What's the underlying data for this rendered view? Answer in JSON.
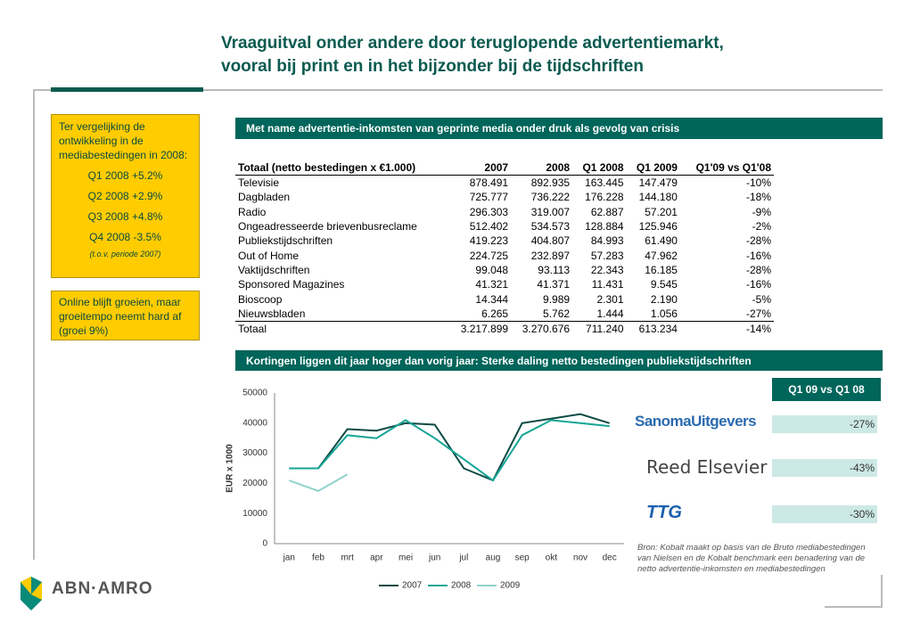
{
  "title": [
    "Vraaguitval onder andere door teruglopende advertentiemarkt,",
    "vooral bij print en in het bijzonder bij de tijdschriften"
  ],
  "sidebar": {
    "intro": "Ter vergelijking de ontwikkeling in de mediabestedingen in 2008:",
    "items": [
      "Q1 2008 +5.2%",
      "Q2 2008 +2.9%",
      "Q3 2008 +4.8%",
      "Q4 2008 -3.5%"
    ],
    "note": "(t.o.v. periode 2007)",
    "online": "Online blijft groeien, maar groeitempo neemt hard af (groei 9%)"
  },
  "table": {
    "banner": "Met name advertentie-inkomsten van geprinte media onder druk als gevolg van crisis",
    "columns": [
      "Totaal (netto bestedingen x €1.000)",
      "2007",
      "2008",
      "Q1 2008",
      "Q1 2009",
      "Q1'09 vs Q1'08"
    ],
    "rows": [
      [
        "Televisie",
        "878.491",
        "892.935",
        "163.445",
        "147.479",
        "-10%"
      ],
      [
        "Dagbladen",
        "725.777",
        "736.222",
        "176.228",
        "144.180",
        "-18%"
      ],
      [
        "Radio",
        "296.303",
        "319.007",
        "62.887",
        "57.201",
        "-9%"
      ],
      [
        "Ongeadresseerde brievenbusreclame",
        "512.402",
        "534.573",
        "128.884",
        "125.946",
        "-2%"
      ],
      [
        "Publiekstijdschriften",
        "419.223",
        "404.807",
        "84.993",
        "61.490",
        "-28%"
      ],
      [
        "Out of Home",
        "224.725",
        "232.897",
        "57.283",
        "47.962",
        "-16%"
      ],
      [
        "Vaktijdschriften",
        "99.048",
        "93.113",
        "22.343",
        "16.185",
        "-28%"
      ],
      [
        "Sponsored Magazines",
        "41.321",
        "41.371",
        "11.431",
        "9.545",
        "-16%"
      ],
      [
        "Bioscoop",
        "14.344",
        "9.989",
        "2.301",
        "2.190",
        "-5%"
      ],
      [
        "Nieuwsbladen",
        "6.265",
        "5.762",
        "1.444",
        "1.056",
        "-27%"
      ],
      [
        "Totaal",
        "3.217.899",
        "3.270.676",
        "711.240",
        "613.234",
        "-14%"
      ]
    ]
  },
  "chart_banner": "Kortingen liggen dit jaar hoger dan vorig jaar: Sterke daling netto bestedingen publiekstijdschriften",
  "chart_data": {
    "type": "line",
    "ylabel": "EUR x 1000",
    "categories": [
      "jan",
      "feb",
      "mrt",
      "apr",
      "mei",
      "jun",
      "jul",
      "aug",
      "sep",
      "okt",
      "nov",
      "dec"
    ],
    "ylim": [
      0,
      50000
    ],
    "yticks": [
      0,
      10000,
      20000,
      30000,
      40000,
      50000
    ],
    "legend": "bottom",
    "series": [
      {
        "name": "2007",
        "color": "#0b4a43",
        "values": [
          25000,
          25000,
          38000,
          37500,
          40000,
          39500,
          25000,
          21000,
          40000,
          41500,
          43000,
          40000
        ]
      },
      {
        "name": "2008",
        "color": "#14a596",
        "values": [
          25000,
          25000,
          36000,
          35000,
          41000,
          35000,
          28000,
          21000,
          36000,
          41000,
          40000,
          39000
        ]
      },
      {
        "name": "2009",
        "color": "#8fd3cc",
        "values": [
          21000,
          17500,
          23000,
          null,
          null,
          null,
          null,
          null,
          null,
          null,
          null,
          null
        ]
      }
    ]
  },
  "comparison": {
    "header": "Q1 09 vs Q1 08",
    "publishers": [
      {
        "name": "SanomaUitgevers",
        "value": "-27%"
      },
      {
        "name": "Reed Elsevier",
        "value": "-43%"
      },
      {
        "name": "TTG",
        "value": "-30%"
      }
    ]
  },
  "source": "Bron: Kobalt maakt op basis van de Bruto mediabestedingen van Nielsen en de Kobalt benchmark een benadering van de netto advertentie-inkomsten en mediabestedingen",
  "brand": "ABN·AMRO"
}
